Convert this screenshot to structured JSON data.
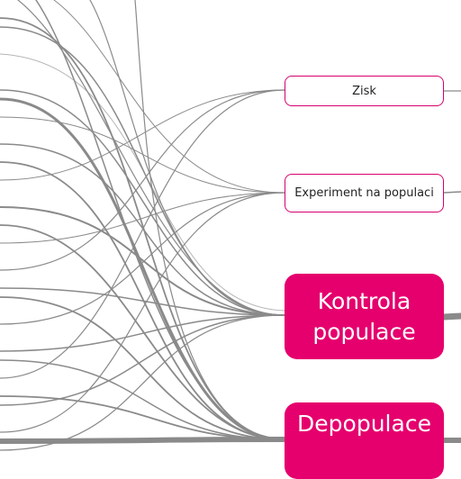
{
  "nodes": {
    "zisk": "Zisk",
    "experiment": "Experiment na populaci",
    "kontrola": "Kontrola populace",
    "depopulace": "Depopulace"
  },
  "colors": {
    "accent": "#e5006d",
    "border": "#d6006f",
    "link": "#8a8a8a",
    "background": "#ffffff"
  }
}
